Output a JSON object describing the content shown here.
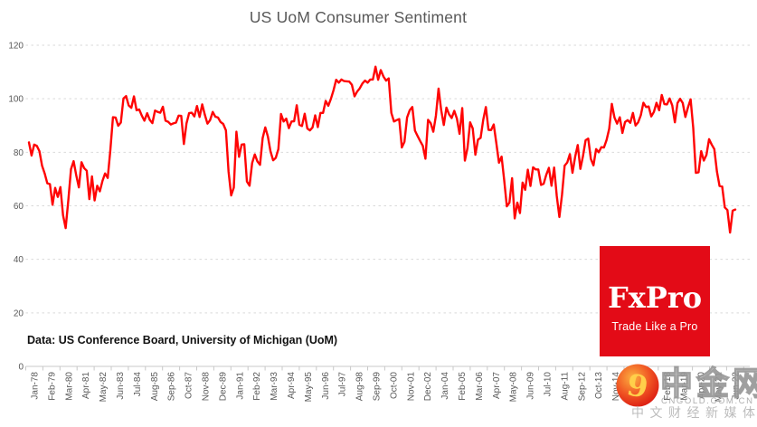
{
  "title": "US UoM Consumer Sentiment",
  "source_note": "Data: US Conference Board, University of Michigan (UoM)",
  "colors": {
    "line": "#ff0404",
    "fxpro_red": "#e30b17",
    "title_text": "#595959",
    "axis_text": "#595959",
    "gridline": "#d9d9d9",
    "axis_line": "#c8c8c8",
    "watermark_gray": "#8f8f8f",
    "watermark_gold": "#ffcf4a"
  },
  "y_axis": {
    "ticks": [
      0,
      20,
      40,
      60,
      80,
      100,
      120
    ]
  },
  "x_axis": {
    "labels": [
      "Jan-78",
      "Feb-79",
      "Mar-80",
      "Apr-81",
      "May-82",
      "Jun-83",
      "Jul-84",
      "Aug-85",
      "Sep-86",
      "Oct-87",
      "Nov-88",
      "Dec-89",
      "Jan-91",
      "Feb-92",
      "Mar-93",
      "Apr-94",
      "May-95",
      "Jun-96",
      "Jul-97",
      "Aug-98",
      "Sep-99",
      "Oct-00",
      "Nov-01",
      "Dec-02",
      "Jan-04",
      "Feb-05",
      "Mar-06",
      "Apr-07",
      "May-08",
      "Jun-09",
      "Jul-10",
      "Aug-11",
      "Sep-12",
      "Oct-13",
      "Nov-14",
      "Dec-15",
      "Jan-17",
      "Feb-18",
      "Mar-19",
      "Apr-20",
      "May-21",
      "Jun-22"
    ]
  },
  "fxpro": {
    "name": "FxPro",
    "tagline": "Trade Like a Pro"
  },
  "watermark": {
    "brand": "中金网",
    "domain": "CNGOLD.COM.CN",
    "slogan": "中文财经新媒体",
    "logo_glyph": "9"
  },
  "chart_data": {
    "type": "line",
    "title": "US UoM Consumer Sentiment",
    "series_name": "University of Michigan Consumer Sentiment Index",
    "x_start": "Jan-1978",
    "x_end": "Sep-2022",
    "sampling": "bimonthly (Jan/Mar/May/Jul/Sep/Nov each year; 2022 tail: Jan,Mar,May,Jun,Aug,Sep)",
    "xlabel": "",
    "ylabel": "",
    "ylim": [
      0,
      120
    ],
    "grid": "horizontal dashed",
    "legend": "none",
    "values": [
      83.7,
      78.8,
      82.9,
      82.4,
      80.4,
      75.0,
      72.1,
      68.4,
      68.1,
      60.4,
      66.7,
      63.3,
      67.0,
      56.5,
      51.7,
      62.3,
      73.7,
      76.7,
      71.4,
      66.9,
      76.3,
      74.1,
      73.1,
      62.5,
      71.0,
      62.0,
      67.5,
      65.4,
      69.3,
      72.1,
      70.4,
      80.8,
      93.1,
      93.0,
      89.9,
      91.1,
      100.1,
      101.0,
      97.5,
      96.6,
      100.9,
      95.7,
      96.0,
      93.7,
      91.8,
      94.6,
      92.1,
      90.9,
      95.6,
      95.1,
      94.8,
      97.0,
      91.8,
      91.4,
      90.4,
      90.8,
      91.1,
      93.7,
      93.6,
      83.1,
      90.8,
      94.6,
      94.8,
      93.4,
      97.3,
      93.2,
      97.9,
      94.0,
      90.7,
      92.0,
      95.1,
      93.3,
      93.0,
      91.3,
      90.6,
      88.2,
      72.8,
      63.9,
      66.8,
      87.7,
      78.3,
      82.9,
      83.0,
      69.1,
      67.5,
      76.0,
      79.2,
      76.6,
      75.3,
      85.3,
      89.3,
      85.9,
      80.3,
      77.0,
      77.9,
      81.2,
      94.3,
      91.5,
      92.6,
      89.0,
      91.5,
      91.6,
      97.6,
      90.3,
      89.8,
      94.4,
      88.9,
      88.2,
      89.3,
      93.8,
      89.4,
      94.7,
      94.7,
      99.2,
      97.4,
      100.0,
      103.2,
      107.1,
      106.0,
      107.2,
      106.6,
      106.5,
      106.4,
      105.2,
      100.9,
      102.7,
      103.9,
      105.7,
      106.8,
      106.0,
      107.2,
      107.2,
      112.0,
      107.1,
      110.7,
      108.3,
      106.8,
      107.6,
      94.7,
      91.5,
      92.0,
      92.4,
      81.8,
      83.9,
      93.0,
      95.7,
      96.9,
      88.1,
      86.1,
      84.2,
      82.4,
      77.6,
      92.1,
      90.9,
      87.7,
      93.7,
      103.8,
      95.8,
      90.2,
      96.7,
      94.2,
      92.8,
      95.5,
      92.6,
      86.9,
      96.5,
      76.9,
      81.6,
      91.2,
      88.9,
      79.1,
      84.7,
      85.4,
      92.1,
      96.9,
      88.4,
      88.3,
      90.4,
      83.4,
      76.1,
      78.4,
      69.5,
      59.8,
      61.2,
      70.3,
      55.3,
      61.2,
      57.3,
      68.7,
      66.0,
      73.5,
      67.4,
      74.4,
      73.6,
      73.6,
      67.8,
      68.2,
      71.6,
      74.2,
      67.5,
      74.3,
      63.7,
      55.8,
      64.1,
      75.0,
      76.2,
      79.3,
      72.3,
      78.3,
      82.7,
      73.8,
      78.6,
      84.5,
      85.1,
      77.5,
      75.1,
      81.2,
      80.0,
      81.9,
      81.8,
      84.6,
      88.8,
      98.1,
      93.0,
      90.7,
      93.1,
      87.2,
      91.3,
      92.0,
      91.0,
      94.7,
      90.0,
      91.2,
      93.8,
      98.5,
      96.9,
      97.1,
      93.4,
      95.1,
      98.5,
      95.7,
      101.4,
      98.0,
      97.9,
      100.1,
      97.5,
      91.2,
      98.4,
      100.0,
      98.4,
      93.2,
      96.8,
      99.8,
      89.1,
      72.3,
      72.5,
      80.4,
      76.9,
      79.0,
      84.9,
      82.9,
      81.2,
      72.8,
      67.4,
      67.2,
      59.4,
      58.4,
      50.0,
      58.2,
      58.6
    ]
  }
}
